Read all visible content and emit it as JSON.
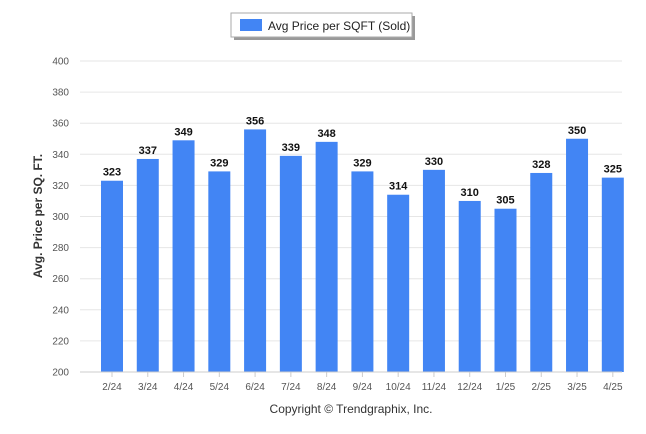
{
  "chart_data": {
    "type": "bar",
    "categories": [
      "2/24",
      "3/24",
      "4/24",
      "5/24",
      "6/24",
      "7/24",
      "8/24",
      "9/24",
      "10/24",
      "11/24",
      "12/24",
      "1/25",
      "2/25",
      "3/25",
      "4/25"
    ],
    "series": [
      {
        "name": "Avg Price per SQFT (Sold)",
        "values": [
          323,
          337,
          349,
          329,
          356,
          339,
          348,
          329,
          314,
          330,
          310,
          305,
          328,
          350,
          325
        ],
        "color": "#4285f4"
      }
    ],
    "ylabel": "Avg. Price per SQ. FT.",
    "ylim": [
      200,
      400
    ],
    "yticks": [
      200,
      220,
      240,
      260,
      280,
      300,
      320,
      340,
      360,
      380,
      400
    ],
    "grid": true,
    "legend_position": "top-center",
    "data_labels": true
  },
  "footer": {
    "copyright": "Copyright © Trendgraphix, Inc."
  }
}
